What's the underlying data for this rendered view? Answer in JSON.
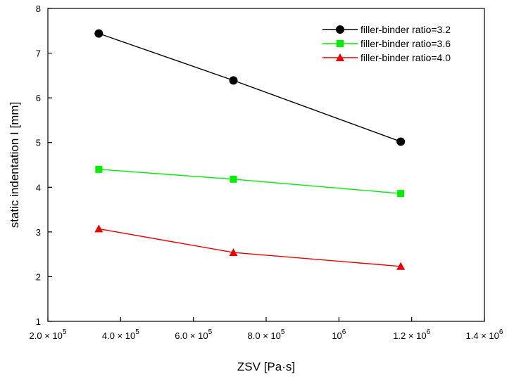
{
  "chart_data": {
    "type": "line",
    "title": "",
    "xlabel": "ZSV [Pa·s]",
    "ylabel": "static indentation I [mm]",
    "xlim": [
      200000,
      1400000
    ],
    "ylim": [
      1,
      8
    ],
    "grid": false,
    "legend_position": "top-right",
    "x": [
      340000,
      710000,
      1170000
    ],
    "x_ticks": [
      {
        "value": 200000,
        "mantissa": "2.0",
        "times": "×",
        "base": "10",
        "exp": "5"
      },
      {
        "value": 400000,
        "mantissa": "4.0",
        "times": "×",
        "base": "10",
        "exp": "5"
      },
      {
        "value": 600000,
        "mantissa": "6.0",
        "times": "×",
        "base": "10",
        "exp": "5"
      },
      {
        "value": 800000,
        "mantissa": "8.0",
        "times": "×",
        "base": "10",
        "exp": "5"
      },
      {
        "value": 1000000,
        "mantissa": "",
        "times": "",
        "base": "10",
        "exp": "6"
      },
      {
        "value": 1200000,
        "mantissa": "1.2",
        "times": "×",
        "base": "10",
        "exp": "6"
      },
      {
        "value": 1400000,
        "mantissa": "1.4",
        "times": "×",
        "base": "10",
        "exp": "6"
      }
    ],
    "y_ticks": [
      1,
      2,
      3,
      4,
      5,
      6,
      7,
      8
    ],
    "series": [
      {
        "name": "filler-binder ratio=3.2",
        "marker": "circle",
        "color": "#000000",
        "values": [
          7.44,
          6.39,
          5.02
        ]
      },
      {
        "name": "filler-binder ratio=3.6",
        "marker": "square",
        "color": "#00ee00",
        "values": [
          4.4,
          4.18,
          3.86
        ]
      },
      {
        "name": "filler-binder ratio=4.0",
        "marker": "triangle",
        "color": "#ee0000",
        "values": [
          3.07,
          2.54,
          2.23
        ]
      }
    ]
  }
}
